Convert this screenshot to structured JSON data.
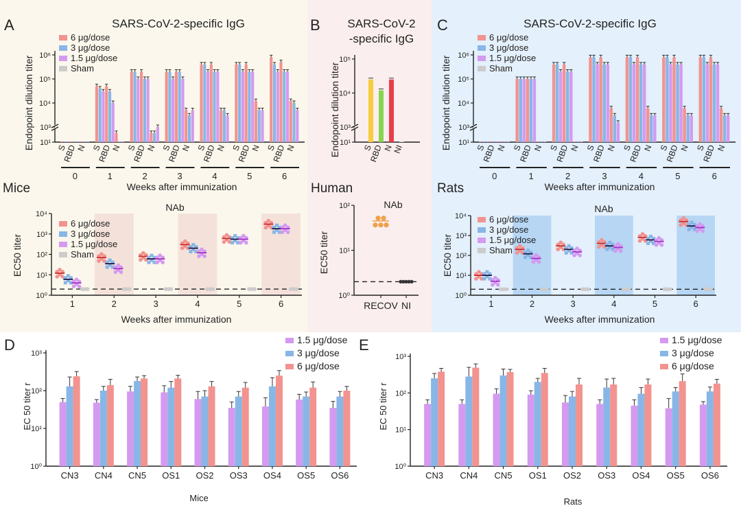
{
  "panels": {
    "A": {
      "letter": "A",
      "title": "SARS-CoV-2-specific IgG",
      "species": "Mice",
      "nab_title": "NAb"
    },
    "B": {
      "letter": "B",
      "title_line1": "SARS-CoV-2",
      "title_line2": "-specific IgG",
      "species": "Human",
      "nab_title": "NAb"
    },
    "C": {
      "letter": "C",
      "title": "SARS-CoV-2-specific IgG",
      "species": "Rats",
      "nab_title": "NAb"
    },
    "D": {
      "letter": "D",
      "xlabel": "Mice"
    },
    "E": {
      "letter": "E",
      "xlabel": "Rats"
    }
  },
  "legend": {
    "dose6": "6 μg/dose",
    "dose3": "3 μg/dose",
    "dose15": "1.5 μg/dose",
    "sham": "Sham"
  },
  "colors": {
    "dose6": "#f2938f",
    "dose3": "#88b6e6",
    "dose15": "#d49af0",
    "sham": "#cccccc",
    "panelA_bg": "#fbf7ec",
    "panelB_bg": "#fbeeee",
    "panelC_bg": "#e4f0fb",
    "bandA": "#f4e2da",
    "bandC": "#b6d6f4",
    "bS": "#f6cd3c",
    "bRBD": "#86d44f",
    "bN": "#ea3d4a",
    "species_mice": "#d9a233",
    "species_human": "#8e2d2d",
    "species_rats": "#233c7a"
  },
  "labels": {
    "ylabel_igg": "Endopoint dilution titer",
    "ylabel_ec50": "EC50 titer",
    "xlabel_weeks": "Weeks after immunization",
    "ylabel_de": "EC 50 titer r"
  },
  "chart_data": [
    {
      "id": "A-igg",
      "type": "bar",
      "title": "SARS-CoV-2-specific IgG",
      "ylabel": "Endopoint dilution titer",
      "xlabel": "Weeks after immunization",
      "yscale": "log",
      "ylim": [
        10,
        1000000
      ],
      "axis_break": true,
      "yticks": [
        "10¹",
        "10³",
        "10⁴",
        "10⁵",
        "10⁶"
      ],
      "groups": [
        "0",
        "1",
        "2",
        "3",
        "4",
        "5",
        "6"
      ],
      "antigens": [
        "S",
        "RBD",
        "N"
      ],
      "series": [
        {
          "name": "6 μg/dose",
          "values": [
            [
              10,
              10,
              10
            ],
            [
              50000,
              50000,
              30
            ],
            [
              200000,
              200000,
              40
            ],
            [
              200000,
              200000,
              5000
            ],
            [
              400000,
              400000,
              5000
            ],
            [
              400000,
              400000,
              12000
            ],
            [
              800000,
              500000,
              12000
            ]
          ]
        },
        {
          "name": "3 μg/dose",
          "values": [
            [
              10,
              10,
              10
            ],
            [
              40000,
              30000,
              20
            ],
            [
              200000,
              100000,
              200
            ],
            [
              200000,
              200000,
              3000
            ],
            [
              400000,
              200000,
              5000
            ],
            [
              400000,
              200000,
              5000
            ],
            [
              400000,
              200000,
              10000
            ]
          ]
        },
        {
          "name": "1.5 μg/dose",
          "values": [
            [
              10,
              10,
              10
            ],
            [
              30000,
              10000,
              15
            ],
            [
              100000,
              100000,
              1000
            ],
            [
              100000,
              100000,
              5000
            ],
            [
              200000,
              200000,
              3000
            ],
            [
              200000,
              200000,
              5000
            ],
            [
              200000,
              200000,
              5000
            ]
          ]
        }
      ]
    },
    {
      "id": "A-nab",
      "type": "scatter",
      "title": "NAb",
      "ylabel": "EC50 titer",
      "xlabel": "Weeks after immunization",
      "yscale": "log",
      "ylim": [
        1,
        10000
      ],
      "yticks": [
        "10⁰",
        "10¹",
        "10²",
        "10³",
        "10⁴"
      ],
      "categories": [
        "1",
        "2",
        "3",
        "4",
        "5",
        "6"
      ],
      "limit_of_detection": 2,
      "series": [
        {
          "name": "6 μg/dose",
          "values": [
            12,
            70,
            80,
            300,
            600,
            3000
          ]
        },
        {
          "name": "3 μg/dose",
          "values": [
            6,
            35,
            60,
            200,
            550,
            1800
          ]
        },
        {
          "name": "1.5 μg/dose",
          "values": [
            4,
            20,
            60,
            120,
            550,
            1800
          ]
        },
        {
          "name": "Sham",
          "values": [
            2,
            2,
            2,
            2,
            2,
            2
          ]
        }
      ]
    },
    {
      "id": "B-igg",
      "type": "bar",
      "title": "SARS-CoV-2 -specific IgG",
      "ylabel": "Endopoint dilution titer",
      "yscale": "log",
      "ylim": [
        10,
        100000
      ],
      "axis_break": true,
      "yticks": [
        "10¹",
        "10³",
        "10⁴",
        "10⁵"
      ],
      "categories": [
        "S",
        "RBD",
        "N",
        "NI"
      ],
      "values": [
        25000,
        12000,
        25000,
        10
      ]
    },
    {
      "id": "B-nab",
      "type": "scatter",
      "title": "NAb",
      "ylabel": "EC50 titer",
      "yscale": "log",
      "ylim": [
        1,
        100
      ],
      "yticks": [
        "10⁰",
        "10¹",
        "10²"
      ],
      "categories": [
        "RECOV",
        "NI"
      ],
      "values": [
        45,
        2
      ],
      "limit_of_detection": 2
    },
    {
      "id": "C-igg",
      "type": "bar",
      "title": "SARS-CoV-2-specific IgG",
      "ylabel": "Endopoint dilution titer",
      "xlabel": "Weeks after immunization",
      "yscale": "log",
      "ylim": [
        10,
        1000000
      ],
      "axis_break": true,
      "yticks": [
        "10¹",
        "10³",
        "10⁴",
        "10⁵",
        "10⁶"
      ],
      "groups": [
        "0",
        "1",
        "2",
        "3",
        "4",
        "5",
        "6"
      ],
      "antigens": [
        "S",
        "RBD",
        "N"
      ],
      "series": [
        {
          "name": "6 μg/dose",
          "values": [
            [
              10,
              10,
              10
            ],
            [
              100000,
              100000,
              10
            ],
            [
              400000,
              400000,
              20
            ],
            [
              800000,
              800000,
              6000
            ],
            [
              800000,
              800000,
              6000
            ],
            [
              800000,
              800000,
              6000
            ],
            [
              800000,
              800000,
              6000
            ]
          ]
        },
        {
          "name": "3 μg/dose",
          "values": [
            [
              10,
              10,
              10
            ],
            [
              100000,
              100000,
              10
            ],
            [
              400000,
              200000,
              12
            ],
            [
              800000,
              400000,
              3000
            ],
            [
              800000,
              400000,
              3000
            ],
            [
              800000,
              400000,
              3000
            ],
            [
              800000,
              400000,
              3000
            ]
          ]
        },
        {
          "name": "1.5 μg/dose",
          "values": [
            [
              10,
              10,
              10
            ],
            [
              100000,
              100000,
              10
            ],
            [
              200000,
              200000,
              10
            ],
            [
              400000,
              400000,
              1500
            ],
            [
              400000,
              400000,
              3000
            ],
            [
              400000,
              400000,
              3000
            ],
            [
              400000,
              400000,
              3000
            ]
          ]
        }
      ]
    },
    {
      "id": "C-nab",
      "type": "scatter",
      "title": "NAb",
      "ylabel": "EC50 titer",
      "xlabel": "Weeks after immunization",
      "yscale": "log",
      "ylim": [
        1,
        10000
      ],
      "yticks": [
        "10⁰",
        "10¹",
        "10²",
        "10³",
        "10⁴"
      ],
      "categories": [
        "1",
        "2",
        "3",
        "4",
        "5",
        "6"
      ],
      "limit_of_detection": 2,
      "series": [
        {
          "name": "6 μg/dose",
          "values": [
            10,
            200,
            300,
            400,
            800,
            5000
          ]
        },
        {
          "name": "3 μg/dose",
          "values": [
            10,
            120,
            200,
            300,
            600,
            3000
          ]
        },
        {
          "name": "1.5 μg/dose",
          "values": [
            5,
            70,
            150,
            250,
            500,
            2500
          ]
        },
        {
          "name": "Sham",
          "values": [
            2,
            2,
            2,
            2,
            2,
            2
          ]
        }
      ]
    },
    {
      "id": "D",
      "type": "bar",
      "ylabel": "EC 50 titer r",
      "xlabel": "Mice",
      "yscale": "log",
      "ylim": [
        1,
        1000
      ],
      "yticks": [
        "10⁰",
        "10¹",
        "10²",
        "10³"
      ],
      "categories": [
        "CN3",
        "CN4",
        "CN5",
        "OS1",
        "OS2",
        "OS3",
        "OS4",
        "OS5",
        "OS6"
      ],
      "series": [
        {
          "name": "1.5 μg/dose",
          "values": [
            50,
            48,
            95,
            90,
            60,
            35,
            38,
            58,
            35
          ],
          "errors": [
            62,
            58,
            130,
            135,
            95,
            50,
            65,
            80,
            52
          ]
        },
        {
          "name": "3 μg/dose",
          "values": [
            130,
            100,
            180,
            120,
            70,
            70,
            130,
            70,
            70
          ],
          "errors": [
            230,
            130,
            230,
            175,
            100,
            95,
            220,
            92,
            95
          ]
        },
        {
          "name": "6 μg/dose",
          "values": [
            240,
            140,
            210,
            210,
            130,
            120,
            250,
            120,
            100
          ],
          "errors": [
            320,
            200,
            250,
            255,
            175,
            165,
            340,
            170,
            130
          ]
        }
      ]
    },
    {
      "id": "E",
      "type": "bar",
      "ylabel": "EC 50 titer r",
      "xlabel": "Rats",
      "yscale": "log",
      "ylim": [
        1,
        1000
      ],
      "yticks": [
        "10⁰",
        "10¹",
        "10²",
        "10³"
      ],
      "categories": [
        "CN3",
        "CN4",
        "CN5",
        "OS1",
        "OS2",
        "OS3",
        "OS4",
        "OS5",
        "OS6"
      ],
      "series": [
        {
          "name": "1.5 μg/dose",
          "values": [
            50,
            50,
            95,
            90,
            55,
            50,
            45,
            38,
            48
          ],
          "errors": [
            65,
            65,
            130,
            115,
            85,
            65,
            65,
            70,
            58
          ]
        },
        {
          "name": "3 μg/dose",
          "values": [
            250,
            280,
            300,
            200,
            80,
            140,
            95,
            110,
            110
          ],
          "errors": [
            340,
            500,
            450,
            250,
            110,
            240,
            140,
            140,
            145
          ]
        },
        {
          "name": "6 μg/dose",
          "values": [
            380,
            490,
            370,
            350,
            170,
            170,
            170,
            210,
            180
          ],
          "errors": [
            470,
            620,
            440,
            470,
            250,
            250,
            240,
            330,
            235
          ]
        }
      ]
    }
  ]
}
